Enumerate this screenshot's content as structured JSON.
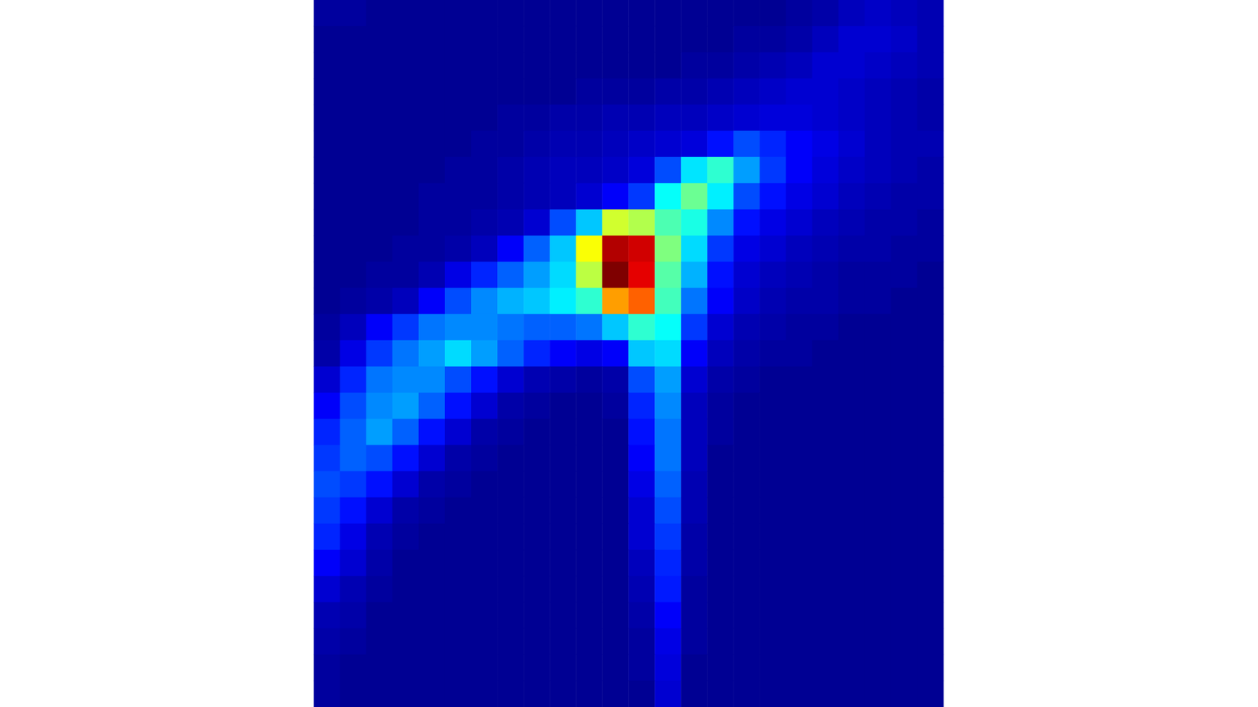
{
  "chart_data": {
    "type": "heatmap",
    "tick_labels": false,
    "grid": false,
    "color_range": [
      0,
      100
    ],
    "cells": [
      [
        3,
        3,
        2,
        2,
        2,
        2,
        2,
        2,
        2,
        2,
        2,
        2,
        2,
        2,
        2,
        2,
        2,
        2,
        3,
        4,
        6,
        7,
        6,
        5
      ],
      [
        2,
        2,
        2,
        2,
        2,
        2,
        2,
        2,
        2,
        2,
        2,
        2,
        2,
        2,
        2,
        2,
        3,
        3,
        4,
        6,
        8,
        8,
        7,
        5
      ],
      [
        2,
        2,
        2,
        2,
        2,
        2,
        2,
        2,
        2,
        2,
        2,
        2,
        2,
        2,
        3,
        3,
        4,
        5,
        6,
        8,
        8,
        7,
        6,
        5
      ],
      [
        2,
        2,
        2,
        2,
        2,
        2,
        2,
        2,
        2,
        2,
        3,
        3,
        3,
        4,
        4,
        5,
        6,
        7,
        8,
        8,
        7,
        6,
        5,
        4
      ],
      [
        2,
        2,
        2,
        2,
        2,
        2,
        2,
        3,
        3,
        4,
        4,
        5,
        5,
        6,
        6,
        7,
        8,
        9,
        9,
        8,
        7,
        6,
        5,
        4
      ],
      [
        2,
        2,
        2,
        2,
        2,
        2,
        3,
        3,
        4,
        5,
        5,
        6,
        7,
        8,
        9,
        14,
        20,
        16,
        12,
        10,
        8,
        6,
        5,
        5
      ],
      [
        2,
        2,
        2,
        2,
        2,
        3,
        3,
        4,
        5,
        6,
        6,
        7,
        9,
        20,
        35,
        42,
        28,
        18,
        12,
        9,
        7,
        6,
        5,
        4
      ],
      [
        2,
        2,
        2,
        2,
        3,
        3,
        3,
        4,
        5,
        6,
        8,
        12,
        18,
        38,
        48,
        36,
        20,
        14,
        10,
        8,
        6,
        5,
        4,
        4
      ],
      [
        2,
        2,
        2,
        2,
        3,
        3,
        4,
        5,
        8,
        20,
        32,
        58,
        55,
        45,
        40,
        26,
        14,
        10,
        8,
        6,
        5,
        4,
        4,
        3
      ],
      [
        2,
        2,
        2,
        3,
        3,
        4,
        6,
        12,
        22,
        32,
        62,
        95,
        92,
        50,
        34,
        18,
        10,
        8,
        6,
        5,
        4,
        4,
        3,
        3
      ],
      [
        2,
        2,
        3,
        3,
        5,
        10,
        16,
        22,
        28,
        34,
        56,
        100,
        90,
        46,
        30,
        14,
        8,
        6,
        5,
        4,
        3,
        3,
        3,
        2
      ],
      [
        2,
        3,
        4,
        6,
        12,
        20,
        26,
        30,
        32,
        36,
        42,
        72,
        78,
        44,
        24,
        12,
        7,
        5,
        4,
        4,
        3,
        3,
        2,
        2
      ],
      [
        3,
        6,
        12,
        18,
        24,
        26,
        26,
        24,
        22,
        22,
        24,
        32,
        42,
        38,
        18,
        8,
        5,
        4,
        3,
        3,
        2,
        2,
        2,
        2
      ],
      [
        4,
        10,
        18,
        24,
        28,
        34,
        28,
        22,
        16,
        12,
        10,
        12,
        32,
        34,
        12,
        6,
        4,
        3,
        3,
        2,
        2,
        2,
        2,
        2
      ],
      [
        8,
        16,
        24,
        26,
        26,
        20,
        14,
        8,
        5,
        4,
        3,
        4,
        20,
        28,
        8,
        4,
        3,
        2,
        2,
        2,
        2,
        2,
        2,
        2
      ],
      [
        12,
        20,
        26,
        28,
        22,
        14,
        8,
        4,
        3,
        2,
        2,
        3,
        16,
        26,
        6,
        3,
        2,
        2,
        2,
        2,
        2,
        2,
        2,
        2
      ],
      [
        16,
        22,
        28,
        22,
        14,
        8,
        4,
        3,
        2,
        2,
        2,
        2,
        14,
        24,
        6,
        3,
        2,
        2,
        2,
        2,
        2,
        2,
        2,
        2
      ],
      [
        18,
        22,
        20,
        14,
        8,
        4,
        3,
        2,
        2,
        2,
        2,
        2,
        12,
        24,
        6,
        2,
        2,
        2,
        2,
        2,
        2,
        2,
        2,
        2
      ],
      [
        20,
        18,
        14,
        8,
        4,
        3,
        2,
        2,
        2,
        2,
        2,
        2,
        10,
        22,
        5,
        2,
        2,
        2,
        2,
        2,
        2,
        2,
        2,
        2
      ],
      [
        18,
        14,
        8,
        4,
        3,
        2,
        2,
        2,
        2,
        2,
        2,
        2,
        8,
        20,
        5,
        2,
        2,
        2,
        2,
        2,
        2,
        2,
        2,
        2
      ],
      [
        16,
        10,
        5,
        3,
        2,
        2,
        2,
        2,
        2,
        2,
        2,
        2,
        8,
        18,
        4,
        2,
        2,
        2,
        2,
        2,
        2,
        2,
        2,
        2
      ],
      [
        12,
        8,
        4,
        2,
        2,
        2,
        2,
        2,
        2,
        2,
        2,
        2,
        6,
        16,
        4,
        2,
        2,
        2,
        2,
        2,
        2,
        2,
        2,
        2
      ],
      [
        8,
        5,
        3,
        2,
        2,
        2,
        2,
        2,
        2,
        2,
        2,
        2,
        5,
        15,
        3,
        2,
        2,
        2,
        2,
        2,
        2,
        2,
        2,
        2
      ],
      [
        5,
        4,
        2,
        2,
        2,
        2,
        2,
        2,
        2,
        2,
        2,
        2,
        4,
        12,
        3,
        2,
        2,
        2,
        2,
        2,
        2,
        2,
        2,
        2
      ],
      [
        4,
        3,
        2,
        2,
        2,
        2,
        2,
        2,
        2,
        2,
        2,
        2,
        3,
        10,
        3,
        2,
        2,
        2,
        2,
        2,
        2,
        2,
        2,
        2
      ],
      [
        3,
        2,
        2,
        2,
        2,
        2,
        2,
        2,
        2,
        2,
        2,
        2,
        3,
        9,
        2,
        2,
        2,
        2,
        2,
        2,
        2,
        2,
        2,
        2
      ],
      [
        3,
        2,
        2,
        2,
        2,
        2,
        2,
        2,
        2,
        2,
        2,
        2,
        2,
        8,
        2,
        2,
        2,
        2,
        2,
        2,
        2,
        2,
        2,
        2
      ]
    ]
  }
}
